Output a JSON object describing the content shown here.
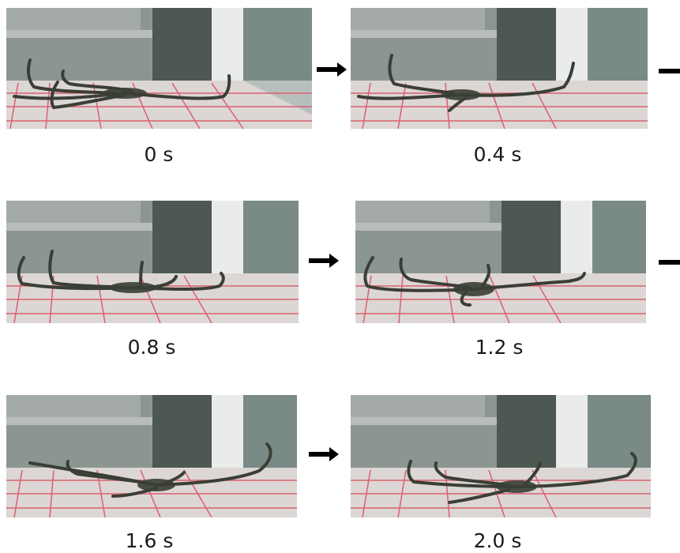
{
  "frames": [
    {
      "label": "0 s"
    },
    {
      "label": "0.4 s"
    },
    {
      "label": "0.8 s"
    },
    {
      "label": "1.2 s"
    },
    {
      "label": "1.6 s"
    },
    {
      "label": "2.0 s"
    }
  ],
  "colors": {
    "tank_glass": "#8f9995",
    "floor": "#ddd8d6",
    "grid_line": "#d8606f",
    "brittle_star": "#3a3f35",
    "arrow": "#000000"
  }
}
